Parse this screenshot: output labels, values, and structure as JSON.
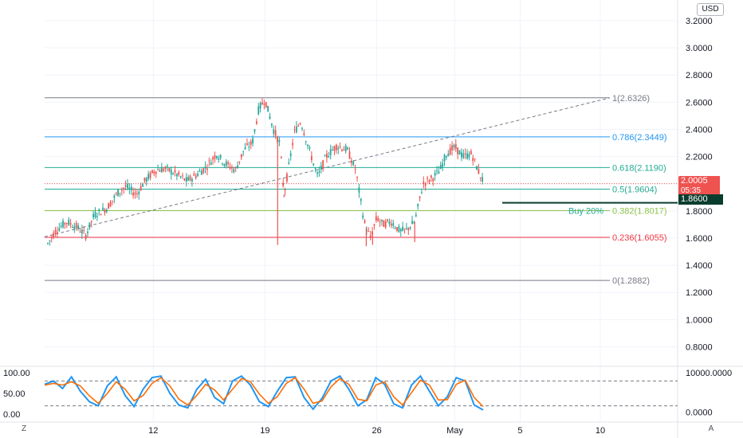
{
  "header": {
    "currency_label": "USD"
  },
  "price_axis": {
    "labels": [
      "3.2000",
      "3.0000",
      "2.8000",
      "2.6000",
      "2.4000",
      "2.2000",
      "2.0000",
      "1.8000",
      "1.6000",
      "1.4000",
      "1.2000",
      "1.0000",
      "0.8000"
    ],
    "values": [
      3.2,
      3.0,
      2.8,
      2.6,
      2.4,
      2.2,
      2.0,
      1.8,
      1.6,
      1.4,
      1.2,
      1.0,
      0.8
    ]
  },
  "time_axis": {
    "labels": [
      "12",
      "19",
      "26",
      "May",
      "5",
      "10"
    ],
    "zoom_label": "Z",
    "auto_label": "A"
  },
  "current_price": {
    "label": "2.0005",
    "countdown": "05:35",
    "value": 2.0005,
    "color": "#ef5350"
  },
  "buy_level": {
    "price_label": "1.8600",
    "value": 1.86,
    "note": "Buy 20%",
    "color": "#0b3d2e",
    "note_color": "#22ab94"
  },
  "fibonacci": [
    {
      "ratio": "1",
      "value": 2.6326,
      "label": "1(2.6326)",
      "color": "#787b86"
    },
    {
      "ratio": "0.786",
      "value": 2.3449,
      "label": "0.786(2.3449)",
      "color": "#2196f3"
    },
    {
      "ratio": "0.618",
      "value": 2.119,
      "label": "0.618(2.1190)",
      "color": "#22ab94"
    },
    {
      "ratio": "0.5",
      "value": 1.9604,
      "label": "0.5(1.9604)",
      "color": "#22ab94"
    },
    {
      "ratio": "0.382",
      "value": 1.8017,
      "label": "0.382(1.8017)",
      "color": "#8bc34a"
    },
    {
      "ratio": "0.236",
      "value": 1.6055,
      "label": "0.236(1.6055)",
      "color": "#f23645"
    },
    {
      "ratio": "0",
      "value": 1.2882,
      "label": "0(1.2882)",
      "color": "#787b86"
    }
  ],
  "oscillator": {
    "left_labels": [
      "100.00",
      "50.00",
      "0.00"
    ],
    "left_values": [
      100,
      50,
      0
    ],
    "right_labels": [
      "10000.0000",
      "0.0000"
    ],
    "upper_band": 80,
    "lower_band": 20,
    "k_color": "#2196f3",
    "d_color": "#ff6d00"
  },
  "colors": {
    "up": "#26a69a",
    "down": "#ef5350",
    "grid": "#f0f3fa"
  },
  "chart_data": {
    "type": "candlestick",
    "price_series": {
      "points": [
        [
          0,
          1.56
        ],
        [
          4,
          1.66
        ],
        [
          9,
          1.72
        ],
        [
          14,
          1.68
        ],
        [
          18,
          1.62
        ],
        [
          22,
          1.77
        ],
        [
          28,
          1.82
        ],
        [
          33,
          1.93
        ],
        [
          37,
          1.98
        ],
        [
          42,
          1.92
        ],
        [
          46,
          2.02
        ],
        [
          51,
          2.1
        ],
        [
          56,
          2.11
        ],
        [
          61,
          2.07
        ],
        [
          66,
          2.02
        ],
        [
          70,
          2.06
        ],
        [
          75,
          2.12
        ],
        [
          80,
          2.22
        ],
        [
          84,
          2.15
        ],
        [
          89,
          2.1
        ],
        [
          93,
          2.25
        ],
        [
          97,
          2.3
        ],
        [
          100,
          2.55
        ],
        [
          103,
          2.62
        ],
        [
          107,
          2.4
        ],
        [
          110,
          2.3
        ],
        [
          112,
          1.92
        ],
        [
          114,
          2.1
        ],
        [
          117,
          2.38
        ],
        [
          120,
          2.46
        ],
        [
          124,
          2.25
        ],
        [
          128,
          2.05
        ],
        [
          132,
          2.2
        ],
        [
          137,
          2.28
        ],
        [
          142,
          2.25
        ],
        [
          146,
          2.1
        ],
        [
          150,
          1.72
        ],
        [
          153,
          1.6
        ],
        [
          156,
          1.75
        ],
        [
          159,
          1.7
        ],
        [
          163,
          1.72
        ],
        [
          167,
          1.65
        ],
        [
          170,
          1.66
        ],
        [
          174,
          1.72
        ],
        [
          178,
          2.0
        ],
        [
          183,
          2.05
        ],
        [
          186,
          2.1
        ],
        [
          189,
          2.22
        ],
        [
          193,
          2.27
        ],
        [
          197,
          2.2
        ],
        [
          201,
          2.22
        ],
        [
          204,
          2.1
        ],
        [
          207,
          2.0
        ]
      ],
      "x_span": [
        0,
        207
      ],
      "date_marks": {
        "12": 50,
        "19": 103,
        "26": 156,
        "May": 193,
        "5": 224,
        "10": 262
      }
    },
    "fib_levels": [
      2.6326,
      2.3449,
      2.119,
      1.9604,
      1.8017,
      1.6055,
      1.2882
    ],
    "stoch_k": [
      72,
      80,
      62,
      90,
      55,
      30,
      20,
      68,
      90,
      45,
      18,
      60,
      88,
      92,
      50,
      22,
      15,
      60,
      84,
      40,
      25,
      80,
      92,
      70,
      30,
      18,
      55,
      88,
      90,
      40,
      12,
      38,
      80,
      92,
      60,
      20,
      35,
      88,
      72,
      25,
      15,
      70,
      92,
      55,
      20,
      42,
      88,
      80,
      22,
      10
    ],
    "stoch_d": [
      70,
      74,
      70,
      78,
      68,
      44,
      26,
      50,
      78,
      60,
      32,
      45,
      74,
      88,
      68,
      36,
      22,
      45,
      72,
      58,
      34,
      60,
      86,
      78,
      48,
      26,
      42,
      74,
      88,
      60,
      26,
      32,
      66,
      86,
      72,
      36,
      32,
      70,
      78,
      42,
      22,
      52,
      82,
      70,
      34,
      35,
      72,
      82,
      40,
      18
    ]
  }
}
